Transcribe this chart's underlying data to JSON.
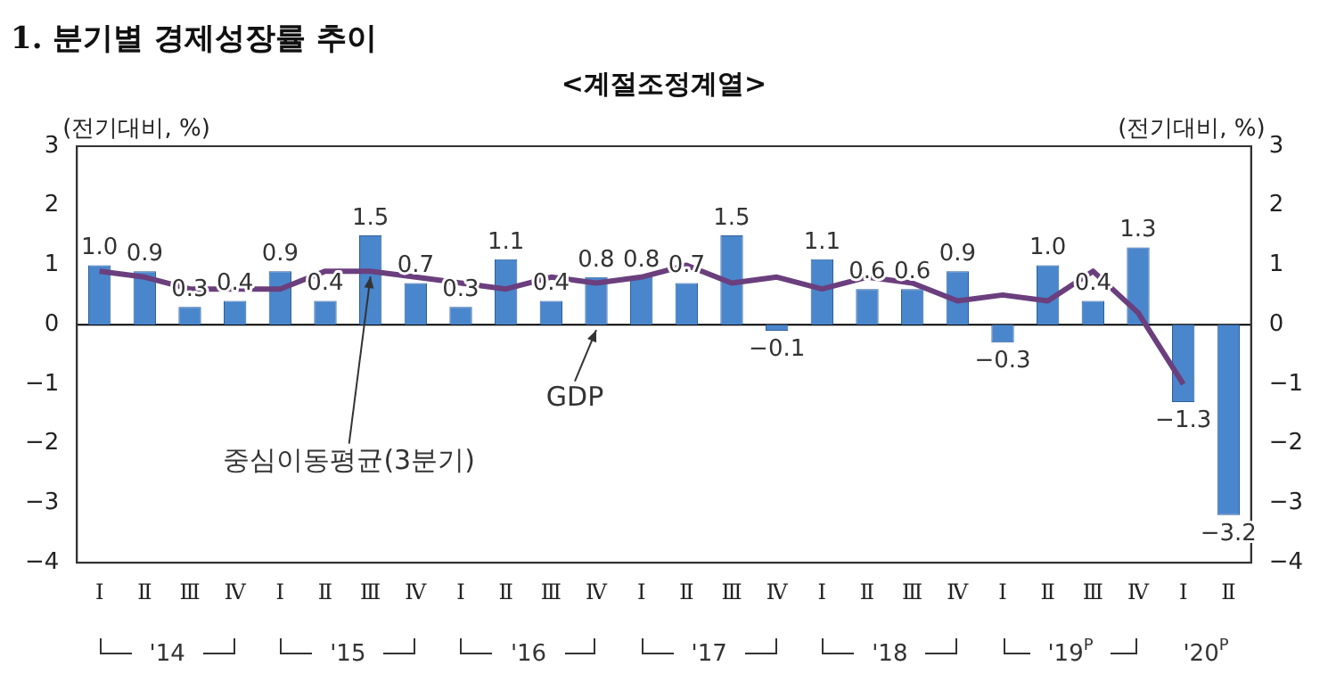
{
  "chart_data": {
    "type": "bar",
    "title": "1. 분기별 경제성장률 추이",
    "subtitle": "<계절조정계열>",
    "ylabel": "(전기대비, %)",
    "y2label": "(전기대비, %)",
    "categories": [
      "Ⅰ",
      "Ⅱ",
      "Ⅲ",
      "Ⅳ",
      "Ⅰ",
      "Ⅱ",
      "Ⅲ",
      "Ⅳ",
      "Ⅰ",
      "Ⅱ",
      "Ⅲ",
      "Ⅳ",
      "Ⅰ",
      "Ⅱ",
      "Ⅲ",
      "Ⅳ",
      "Ⅰ",
      "Ⅱ",
      "Ⅲ",
      "Ⅳ",
      "Ⅰ",
      "Ⅱ",
      "Ⅲ",
      "Ⅳ",
      "Ⅰ",
      "Ⅱ"
    ],
    "series": [
      {
        "name": "GDP",
        "color": "#4a86cc",
        "values": [
          1.0,
          0.9,
          0.3,
          0.4,
          0.9,
          0.4,
          1.5,
          0.7,
          0.3,
          1.1,
          0.4,
          0.8,
          0.8,
          0.7,
          1.5,
          -0.1,
          1.1,
          0.6,
          0.6,
          0.9,
          -0.3,
          1.0,
          0.4,
          1.3,
          -1.3,
          -3.2
        ],
        "value_labels": [
          "1.0",
          "0.9",
          "0.3",
          "0.4",
          "0.9",
          "0.4",
          "1.5",
          "0.7",
          "0.3",
          "1.1",
          "0.4",
          "0.8",
          "0.8",
          "0.7",
          "1.5",
          "−0.1",
          "1.1",
          "0.6",
          "0.6",
          "0.9",
          "−0.3",
          "1.0",
          "0.4",
          "1.3",
          "−1.3",
          "−3.2"
        ]
      },
      {
        "name": "중심이동평균(3분기)",
        "type": "line",
        "color": "#6b3f7d",
        "values": [
          0.9,
          0.8,
          0.6,
          0.6,
          0.6,
          0.9,
          0.9,
          0.8,
          0.7,
          0.6,
          0.8,
          0.7,
          0.8,
          1.0,
          0.7,
          0.8,
          0.6,
          0.8,
          0.7,
          0.4,
          0.5,
          0.4,
          0.9,
          0.2,
          -1.0,
          null
        ]
      }
    ],
    "annotations": [
      "'14",
      "'15",
      "'16",
      "'17",
      "'18",
      "'19$^{P}$",
      "'20$^{P}$"
    ],
    "ylim": [
      -4,
      3
    ],
    "yticks": [
      -4,
      -3,
      -2,
      -1,
      0,
      1,
      2,
      3
    ],
    "y2lim": [
      -4,
      3
    ],
    "y2ticks": [
      -4,
      -3,
      -2,
      -1,
      0,
      1,
      2,
      3
    ],
    "ref_lines": [
      {
        "axis": "y",
        "value": 0,
        "color": "#000000"
      }
    ],
    "grid": false,
    "legend": false,
    "marker": "none",
    "line_style": "solid"
  }
}
